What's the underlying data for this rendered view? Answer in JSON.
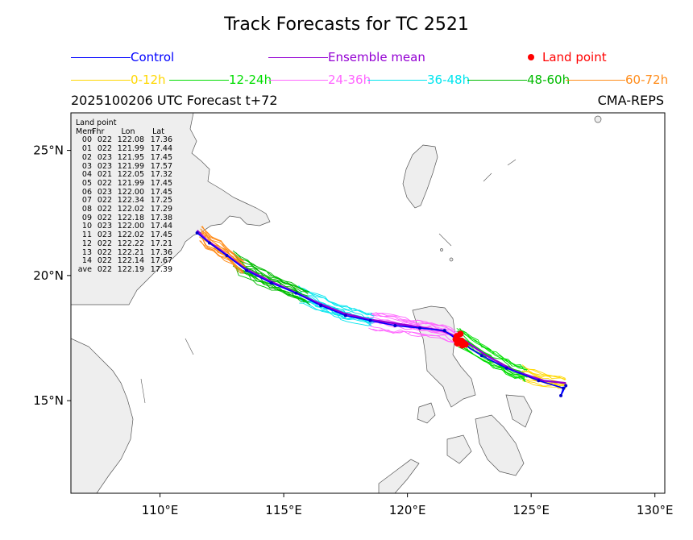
{
  "chart_data": {
    "type": "line",
    "title": "Track Forecasts for TC 2521",
    "subtitle_left": "2025100206 UTC Forecast t+72",
    "subtitle_right": "CMA-REPS",
    "xlim": [
      106.4,
      130.4
    ],
    "ylim": [
      11.3,
      26.5
    ],
    "xticks": [
      {
        "v": 110,
        "label": "110°E"
      },
      {
        "v": 115,
        "label": "115°E"
      },
      {
        "v": 120,
        "label": "120°E"
      },
      {
        "v": 125,
        "label": "125°E"
      },
      {
        "v": 130,
        "label": "130°E"
      }
    ],
    "yticks": [
      {
        "v": 25,
        "label": "25°N"
      },
      {
        "v": 20,
        "label": "20°N"
      },
      {
        "v": 15,
        "label": "15°N"
      }
    ],
    "legend": [
      {
        "label": "Control",
        "color": "#0000ff",
        "kind": "line"
      },
      {
        "label": "Ensemble mean",
        "color": "#9400d3",
        "kind": "line"
      },
      {
        "label": "Land point",
        "color": "#ff0000",
        "kind": "dot"
      },
      {
        "label": "0-12h",
        "color": "#ffd700",
        "kind": "line"
      },
      {
        "label": "12-24h",
        "color": "#00dd00",
        "kind": "line"
      },
      {
        "label": "24-36h",
        "color": "#ff66ff",
        "kind": "line"
      },
      {
        "label": "36-48h",
        "color": "#00e5ee",
        "kind": "line"
      },
      {
        "label": "48-60h",
        "color": "#00bb00",
        "kind": "line"
      },
      {
        "label": "60-72h",
        "color": "#ff8c1a",
        "kind": "line"
      }
    ],
    "control_track": [
      [
        126.4,
        15.6
      ],
      [
        126.2,
        15.2
      ],
      [
        126.3,
        15.5
      ],
      [
        125.3,
        15.8
      ],
      [
        124.0,
        16.3
      ],
      [
        123.0,
        16.8
      ],
      [
        122.2,
        17.3
      ],
      [
        121.5,
        17.8
      ],
      [
        120.5,
        17.9
      ],
      [
        119.5,
        18.0
      ],
      [
        118.5,
        18.2
      ],
      [
        117.5,
        18.4
      ],
      [
        116.5,
        18.8
      ],
      [
        115.5,
        19.3
      ],
      [
        114.5,
        19.7
      ],
      [
        113.5,
        20.2
      ],
      [
        112.7,
        20.8
      ],
      [
        112.0,
        21.3
      ],
      [
        111.5,
        21.7
      ]
    ],
    "ensemble_mean_track": [
      [
        126.4,
        15.7
      ],
      [
        125.5,
        15.8
      ],
      [
        124.3,
        16.2
      ],
      [
        123.2,
        16.8
      ],
      [
        122.3,
        17.4
      ],
      [
        121.4,
        17.8
      ],
      [
        120.4,
        17.95
      ],
      [
        119.4,
        18.1
      ],
      [
        118.4,
        18.25
      ],
      [
        117.4,
        18.5
      ],
      [
        116.4,
        18.9
      ],
      [
        115.4,
        19.35
      ],
      [
        114.4,
        19.8
      ],
      [
        113.4,
        20.3
      ],
      [
        112.6,
        20.9
      ],
      [
        111.9,
        21.4
      ],
      [
        111.5,
        21.8
      ]
    ],
    "segments": [
      {
        "period": "0-12h",
        "color": "#ffd700",
        "lon_range": [
          124.6,
          126.4
        ]
      },
      {
        "period": "12-24h",
        "color": "#00dd00",
        "lon_range": [
          122.0,
          124.8
        ]
      },
      {
        "period": "24-36h",
        "color": "#ff66ff",
        "lon_range": [
          118.3,
          122.2
        ]
      },
      {
        "period": "36-48h",
        "color": "#00e5ee",
        "lon_range": [
          115.5,
          118.6
        ]
      },
      {
        "period": "48-60h",
        "color": "#00bb00",
        "lon_range": [
          113.0,
          116.0
        ]
      },
      {
        "period": "60-72h",
        "color": "#ff8c1a",
        "lon_range": [
          111.4,
          113.4
        ]
      }
    ],
    "land_point_table": {
      "title": "Land point",
      "headers": [
        "Mem",
        "Fhr",
        "Lon",
        "Lat"
      ],
      "rows": [
        [
          "00",
          "022",
          "122.08",
          "17.36"
        ],
        [
          "01",
          "022",
          "121.99",
          "17.44"
        ],
        [
          "02",
          "023",
          "121.95",
          "17.45"
        ],
        [
          "03",
          "023",
          "121.99",
          "17.57"
        ],
        [
          "04",
          "021",
          "122.05",
          "17.32"
        ],
        [
          "05",
          "022",
          "121.99",
          "17.45"
        ],
        [
          "06",
          "023",
          "122.00",
          "17.45"
        ],
        [
          "07",
          "022",
          "122.34",
          "17.25"
        ],
        [
          "08",
          "022",
          "122.02",
          "17.29"
        ],
        [
          "09",
          "022",
          "122.18",
          "17.38"
        ],
        [
          "10",
          "023",
          "122.00",
          "17.44"
        ],
        [
          "11",
          "023",
          "122.02",
          "17.45"
        ],
        [
          "12",
          "022",
          "122.22",
          "17.21"
        ],
        [
          "13",
          "022",
          "122.21",
          "17.36"
        ],
        [
          "14",
          "022",
          "122.14",
          "17.67"
        ],
        [
          "ave",
          "022",
          "122.19",
          "17.39"
        ]
      ]
    }
  }
}
